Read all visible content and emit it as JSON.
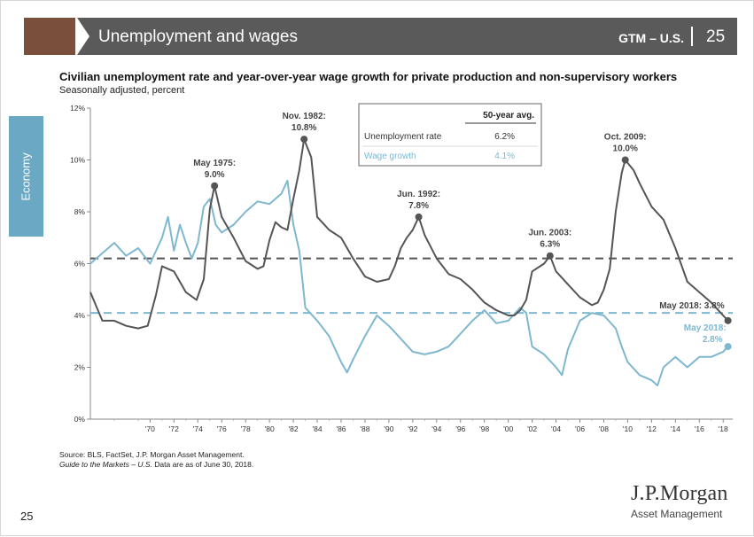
{
  "header": {
    "title": "Unemployment and wages",
    "section": "GTM – U.S.",
    "page": "25"
  },
  "sidebar": {
    "tab": "Economy"
  },
  "footer": {
    "source": "Source: BLS, FactSet, J.P. Morgan Asset Management.",
    "guide_italic": "Guide to the Markets – U.S.",
    "guide_rest": " Data are as of June 30, 2018.",
    "page_number": "25"
  },
  "logo": {
    "main": "J.P.Morgan",
    "sub": "Asset Management"
  },
  "colors": {
    "header_bg": "#5a5a5a",
    "accent": "#7a4f3c",
    "sidebar": "#6aa8c4",
    "unemployment": "#555555",
    "wages": "#7fb7d0"
  },
  "chart_data": {
    "type": "line",
    "title": "Civilian unemployment rate and year-over-year wage growth for private production and non-supervisory workers",
    "subtitle": "Seasonally adjusted, percent",
    "xlim": [
      1965.0,
      2018.8
    ],
    "ylim": [
      0,
      12
    ],
    "y_ticks": [
      "0%",
      "2%",
      "4%",
      "6%",
      "8%",
      "10%",
      "12%"
    ],
    "x_ticks": [
      "'70",
      "'72",
      "'74",
      "'76",
      "'78",
      "'80",
      "'82",
      "'84",
      "'86",
      "'88",
      "'90",
      "'92",
      "'94",
      "'96",
      "'98",
      "'00",
      "'02",
      "'04",
      "'06",
      "'08",
      "'10",
      "'12",
      "'14",
      "'16",
      "'18"
    ],
    "grid": false,
    "averages": {
      "header": "50-year avg.",
      "rows": [
        {
          "label": "Unemployment rate",
          "value": "6.2%",
          "color": "#555555"
        },
        {
          "label": "Wage growth",
          "value": "4.1%",
          "color": "#7fb7d0"
        }
      ],
      "unemployment_avg": 6.2,
      "wage_avg": 4.1
    },
    "series": [
      {
        "name": "Unemployment rate",
        "color": "#555555",
        "x": [
          1965.0,
          1966.0,
          1967.0,
          1968.0,
          1969.0,
          1969.8,
          1970.5,
          1971.0,
          1972.0,
          1973.0,
          1973.9,
          1974.5,
          1975.0,
          1975.4,
          1976.0,
          1977.0,
          1978.0,
          1979.0,
          1979.5,
          1980.0,
          1980.5,
          1981.0,
          1981.5,
          1982.0,
          1982.5,
          1982.9,
          1983.5,
          1984.0,
          1985.0,
          1986.0,
          1987.0,
          1988.0,
          1989.0,
          1990.0,
          1990.5,
          1991.0,
          1991.5,
          1992.0,
          1992.5,
          1993.0,
          1994.0,
          1995.0,
          1996.0,
          1997.0,
          1998.0,
          1999.0,
          2000.0,
          2000.5,
          2001.0,
          2001.5,
          2002.0,
          2003.0,
          2003.5,
          2004.0,
          2005.0,
          2006.0,
          2007.0,
          2007.5,
          2008.0,
          2008.5,
          2009.0,
          2009.5,
          2009.8,
          2010.5,
          2011.0,
          2012.0,
          2013.0,
          2014.0,
          2015.0,
          2016.0,
          2017.0,
          2018.0,
          2018.4
        ],
        "y": [
          4.9,
          3.8,
          3.8,
          3.6,
          3.5,
          3.6,
          4.8,
          5.9,
          5.7,
          4.9,
          4.6,
          5.4,
          8.1,
          9.0,
          7.8,
          7.0,
          6.1,
          5.8,
          5.9,
          6.9,
          7.6,
          7.4,
          7.3,
          8.5,
          9.6,
          10.8,
          10.1,
          7.8,
          7.3,
          7.0,
          6.2,
          5.5,
          5.3,
          5.4,
          5.9,
          6.6,
          7.0,
          7.3,
          7.8,
          7.1,
          6.2,
          5.6,
          5.4,
          5.0,
          4.5,
          4.2,
          4.0,
          4.0,
          4.2,
          4.6,
          5.7,
          6.0,
          6.3,
          5.7,
          5.2,
          4.7,
          4.4,
          4.5,
          5.0,
          5.8,
          8.0,
          9.5,
          10.0,
          9.6,
          9.1,
          8.2,
          7.7,
          6.6,
          5.3,
          4.9,
          4.5,
          4.0,
          3.8
        ]
      },
      {
        "name": "Wage growth",
        "color": "#7fb7d0",
        "x": [
          1965.0,
          1966.0,
          1967.0,
          1968.0,
          1969.0,
          1970.0,
          1971.0,
          1971.5,
          1972.0,
          1972.5,
          1973.0,
          1973.5,
          1974.0,
          1974.5,
          1975.0,
          1975.5,
          1976.0,
          1977.0,
          1978.0,
          1979.0,
          1980.0,
          1981.0,
          1981.5,
          1982.0,
          1982.5,
          1983.0,
          1984.0,
          1985.0,
          1986.0,
          1986.5,
          1987.0,
          1988.0,
          1989.0,
          1990.0,
          1991.0,
          1992.0,
          1993.0,
          1994.0,
          1995.0,
          1996.0,
          1997.0,
          1998.0,
          1999.0,
          2000.0,
          2001.0,
          2001.5,
          2002.0,
          2003.0,
          2004.0,
          2004.5,
          2005.0,
          2006.0,
          2007.0,
          2008.0,
          2009.0,
          2009.5,
          2010.0,
          2011.0,
          2012.0,
          2012.5,
          2013.0,
          2014.0,
          2015.0,
          2016.0,
          2017.0,
          2018.0,
          2018.4
        ],
        "y": [
          6.0,
          6.4,
          6.8,
          6.3,
          6.6,
          6.0,
          7.0,
          7.8,
          6.5,
          7.5,
          6.8,
          6.2,
          6.8,
          8.2,
          8.5,
          7.5,
          7.2,
          7.5,
          8.0,
          8.4,
          8.3,
          8.7,
          9.2,
          7.5,
          6.5,
          4.3,
          3.8,
          3.2,
          2.2,
          1.8,
          2.3,
          3.2,
          4.0,
          3.6,
          3.1,
          2.6,
          2.5,
          2.6,
          2.8,
          3.3,
          3.8,
          4.2,
          3.7,
          3.8,
          4.3,
          4.1,
          2.8,
          2.5,
          2.0,
          1.7,
          2.7,
          3.8,
          4.1,
          4.0,
          3.5,
          2.8,
          2.2,
          1.7,
          1.5,
          1.3,
          2.0,
          2.4,
          2.0,
          2.4,
          2.4,
          2.6,
          2.8
        ]
      }
    ],
    "annotations": [
      {
        "line1": "May 1975:",
        "line2": "9.0%",
        "x": 1975.4,
        "y": 9.0,
        "series": 0
      },
      {
        "line1": "Nov. 1982:",
        "line2": "10.8%",
        "x": 1982.9,
        "y": 10.8,
        "series": 0
      },
      {
        "line1": "Jun. 1992:",
        "line2": "7.8%",
        "x": 1992.5,
        "y": 7.8,
        "series": 0
      },
      {
        "line1": "Jun. 2003:",
        "line2": "6.3%",
        "x": 2003.5,
        "y": 6.3,
        "series": 0
      },
      {
        "line1": "Oct. 2009:",
        "line2": "10.0%",
        "x": 2009.8,
        "y": 10.0,
        "series": 0
      },
      {
        "line1": "May 2018: 3.8%",
        "line2": "",
        "x": 2018.4,
        "y": 3.8,
        "series": 0
      },
      {
        "line1": "May 2018:",
        "line2": "2.8%",
        "x": 2018.4,
        "y": 2.8,
        "series": 1
      }
    ]
  }
}
